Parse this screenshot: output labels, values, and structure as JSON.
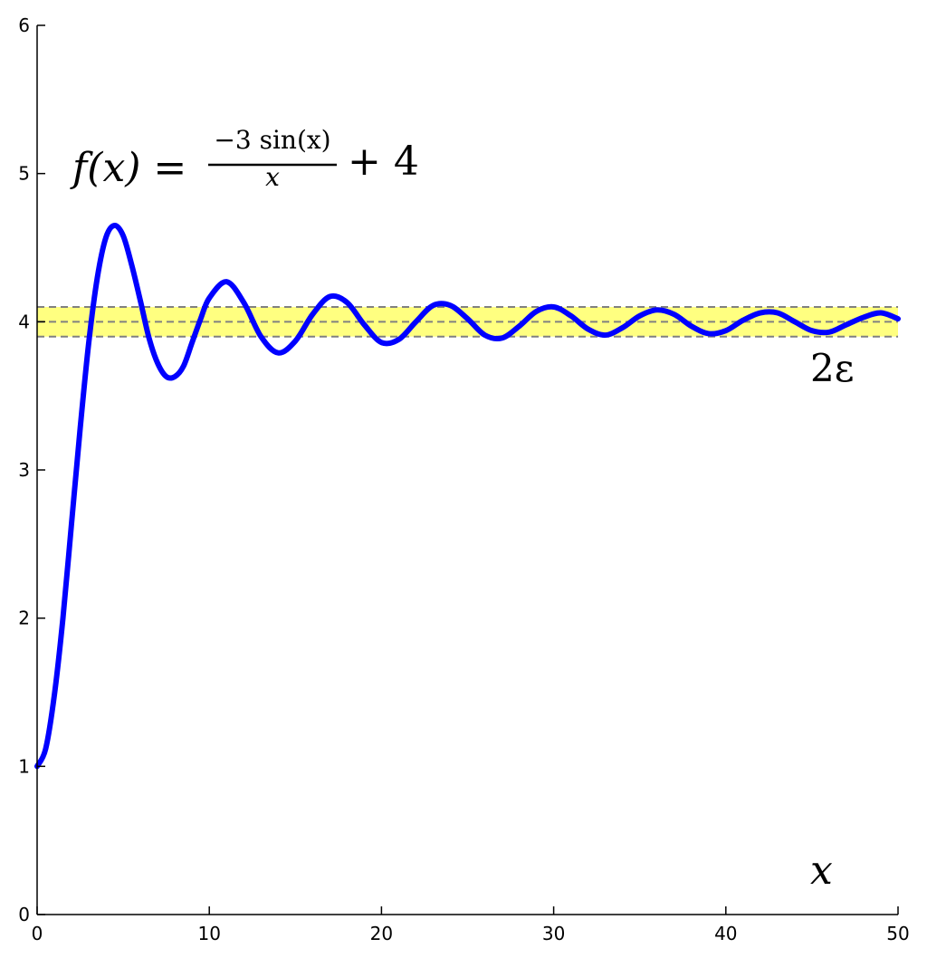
{
  "chart_data": {
    "type": "line",
    "title": "",
    "xlabel": "x",
    "ylabel": "",
    "xlim": [
      0,
      50
    ],
    "ylim": [
      0,
      6
    ],
    "xticks": [
      0,
      10,
      20,
      30,
      40,
      50
    ],
    "yticks": [
      0,
      1,
      2,
      3,
      4,
      5,
      6
    ],
    "grid": false,
    "formula": {
      "lhs": "f(x) =",
      "numerator": "−3 sin(x)",
      "denominator": "x",
      "rhs": "+ 4"
    },
    "band": {
      "center": 4.0,
      "lower": 3.9,
      "upper": 4.1,
      "label": "2ε",
      "color": "#ffff80"
    },
    "series": [
      {
        "color": "#0000ff",
        "x": [
          0,
          0.5,
          1,
          1.5,
          2,
          2.5,
          3,
          3.5,
          4,
          4.5,
          5,
          5.5,
          6,
          6.5,
          7,
          7.5,
          8,
          8.5,
          9,
          9.5,
          10,
          11,
          12,
          13,
          14,
          15,
          16,
          17,
          18,
          19,
          20,
          21,
          22,
          23,
          24,
          25,
          26,
          27,
          28,
          29,
          30,
          31,
          32,
          33,
          34,
          35,
          36,
          37,
          38,
          39,
          40,
          41,
          42,
          43,
          44,
          45,
          46,
          47,
          48,
          49,
          50
        ],
        "y": [
          1.0,
          1.12,
          1.48,
          2.0,
          2.64,
          3.28,
          3.86,
          4.3,
          4.57,
          4.65,
          4.58,
          4.38,
          4.14,
          3.89,
          3.72,
          3.63,
          3.63,
          3.7,
          3.86,
          4.02,
          4.16,
          4.27,
          4.13,
          3.9,
          3.79,
          3.87,
          4.05,
          4.17,
          4.13,
          3.98,
          3.86,
          3.88,
          4.0,
          4.11,
          4.11,
          4.02,
          3.91,
          3.89,
          3.97,
          4.07,
          4.1,
          4.04,
          3.95,
          3.91,
          3.96,
          4.04,
          4.08,
          4.05,
          3.97,
          3.92,
          3.94,
          4.01,
          4.06,
          4.06,
          4.0,
          3.94,
          3.93,
          3.98,
          4.03,
          4.06,
          4.02
        ]
      }
    ]
  }
}
